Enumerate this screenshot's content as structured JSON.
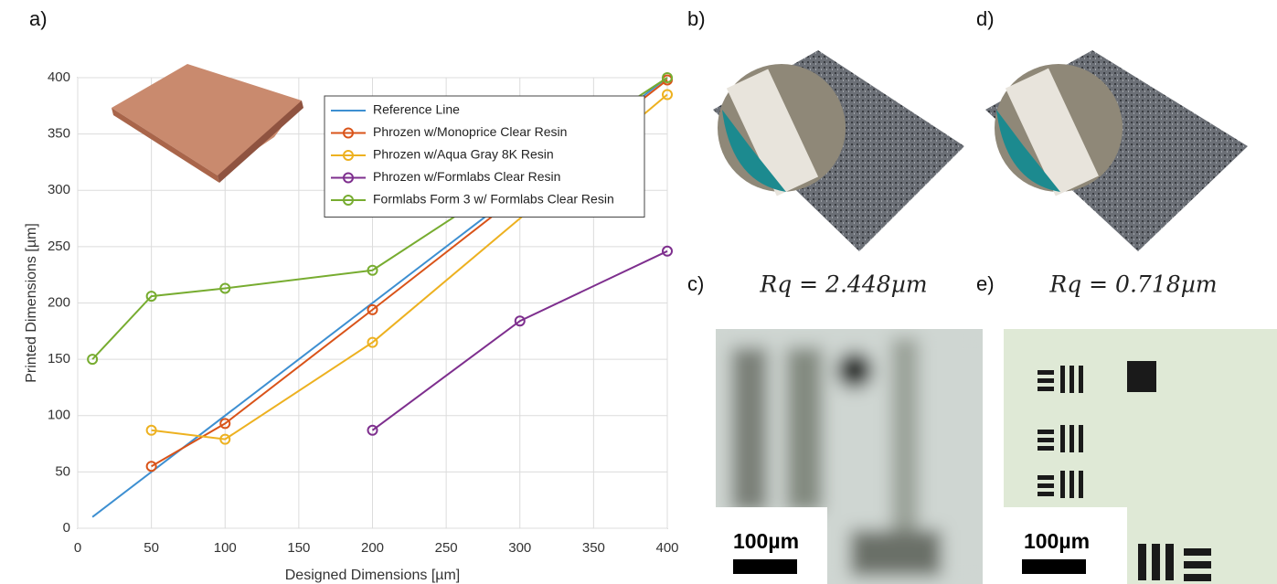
{
  "chart_data": {
    "type": "line",
    "xlabel": "Designed Dimensions [µm]",
    "ylabel": "Printed Dimensions [µm]",
    "xlim": [
      0,
      400
    ],
    "xticks": [
      0,
      50,
      100,
      150,
      200,
      250,
      300,
      350,
      400
    ],
    "ylim": [
      0,
      400
    ],
    "yticks": [
      0,
      50,
      100,
      150,
      200,
      250,
      300,
      350,
      400
    ],
    "grid": true,
    "legend": "upper right",
    "series": [
      {
        "name": "Reference Line",
        "color": "#3d8fd1",
        "markers": false,
        "x": [
          10,
          400
        ],
        "values": [
          10,
          400
        ]
      },
      {
        "name": "Phrozen w/Monoprice Clear Resin",
        "color": "#d95319",
        "markers": true,
        "x": [
          50,
          100,
          200,
          400
        ],
        "values": [
          55,
          93,
          194,
          398
        ]
      },
      {
        "name": "Phrozen w/Aqua Gray 8K Resin",
        "color": "#edb120",
        "markers": true,
        "x": [
          50,
          100,
          200,
          400
        ],
        "values": [
          87,
          79,
          165,
          385
        ]
      },
      {
        "name": "Phrozen w/Formlabs Clear Resin",
        "color": "#7e2f8e",
        "markers": true,
        "x": [
          200,
          300,
          400
        ],
        "values": [
          87,
          184,
          246
        ]
      },
      {
        "name": "Formlabs Form 3 w/ Formlabs Clear Resin",
        "color": "#77ac30",
        "markers": true,
        "x": [
          10,
          50,
          100,
          200,
          400
        ],
        "values": [
          150,
          206,
          213,
          229,
          400
        ]
      }
    ]
  },
  "panel_labels": [
    "a)",
    "b)",
    "c)",
    "d)",
    "e)"
  ],
  "roughness": [
    "Rq = 2.448µm",
    "Rq = 0.718µm"
  ],
  "scale_bars": [
    "100µm",
    "100µm"
  ]
}
